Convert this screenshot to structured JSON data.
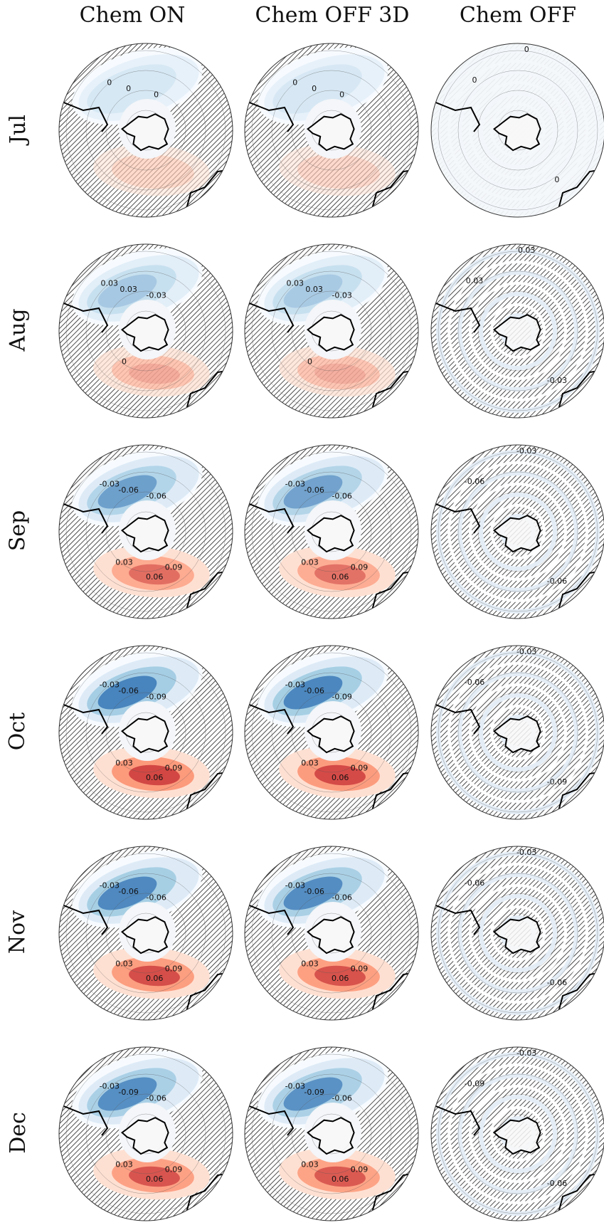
{
  "columns": [
    {
      "title": "Chem ON",
      "kind": "dipole",
      "scale": 1.0
    },
    {
      "title": "Chem OFF 3D",
      "kind": "dipole",
      "scale": 0.97
    },
    {
      "title": "Chem OFF",
      "kind": "rings",
      "scale": 0.0
    }
  ],
  "rows": [
    {
      "label": "Jul",
      "strength": 0.25,
      "contours": [
        "0",
        "0",
        "0"
      ]
    },
    {
      "label": "Aug",
      "strength": 0.45,
      "contours": [
        "0.03",
        "0.03",
        "-0.03",
        "0"
      ]
    },
    {
      "label": "Sep",
      "strength": 0.75,
      "contours": [
        "-0.03",
        "-0.06",
        "-0.06",
        "0.03",
        "0.06",
        "0.09"
      ]
    },
    {
      "label": "Oct",
      "strength": 1.0,
      "contours": [
        "-0.03",
        "-0.06",
        "-0.09",
        "0.03",
        "0.06",
        "0.09"
      ]
    },
    {
      "label": "Nov",
      "strength": 0.95,
      "contours": [
        "-0.03",
        "-0.06",
        "-0.06",
        "0.03",
        "0.06",
        "0.09"
      ]
    },
    {
      "label": "Dec",
      "strength": 0.9,
      "contours": [
        "-0.03",
        "-0.09",
        "-0.06",
        "0.03",
        "0.06",
        "0.09"
      ]
    }
  ],
  "colors": {
    "negative": "#2a6bb0",
    "positive": "#c0232b",
    "hatch": "#222222",
    "coast": "#000000"
  }
}
